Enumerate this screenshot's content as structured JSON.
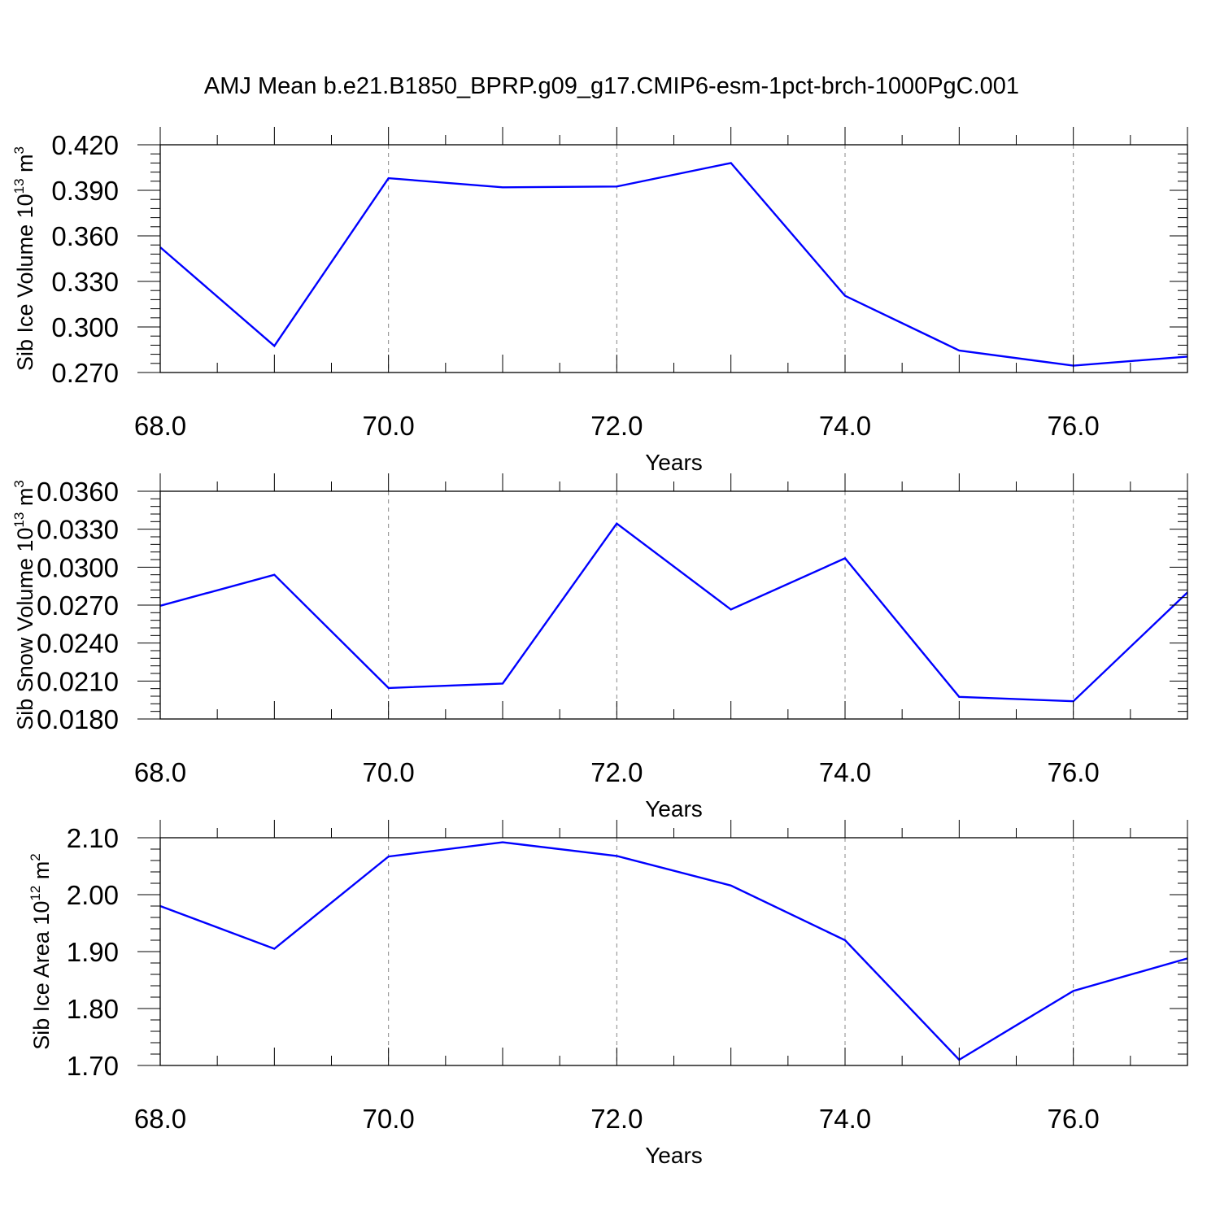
{
  "title": "AMJ Mean b.e21.B1850_BPRP.g09_g17.CMIP6-esm-1pct-brch-1000PgC.001",
  "line_color": "#0000ff",
  "chart_data": [
    {
      "type": "line",
      "xlabel": "Years",
      "ylabel": {
        "main": "Sib Ice Volume 10",
        "exp": "13",
        "unit": " m",
        "unit_exp": "3"
      },
      "xlim": [
        68,
        77
      ],
      "ylim": [
        0.27,
        0.42
      ],
      "xticks": [
        "68.0",
        "70.0",
        "72.0",
        "74.0",
        "76.0"
      ],
      "xtick_values": [
        68,
        70,
        72,
        74,
        76
      ],
      "yticks": [
        "0.420",
        "0.390",
        "0.360",
        "0.330",
        "0.300",
        "0.270"
      ],
      "ytick_values": [
        0.42,
        0.39,
        0.36,
        0.33,
        0.3,
        0.27
      ],
      "grid": "vertical dashed at major x ticks",
      "x": [
        68,
        69,
        70,
        71,
        72,
        73,
        74,
        75,
        76,
        77
      ],
      "y": [
        0.3525,
        0.2875,
        0.398,
        0.392,
        0.3925,
        0.408,
        0.3205,
        0.2845,
        0.2745,
        0.2805
      ]
    },
    {
      "type": "line",
      "xlabel": "Years",
      "ylabel": {
        "main": "Sib Snow Volume 10",
        "exp": "13",
        "unit": " m",
        "unit_exp": "3"
      },
      "xlim": [
        68,
        77
      ],
      "ylim": [
        0.018,
        0.036
      ],
      "xticks": [
        "68.0",
        "70.0",
        "72.0",
        "74.0",
        "76.0"
      ],
      "xtick_values": [
        68,
        70,
        72,
        74,
        76
      ],
      "yticks": [
        "0.0360",
        "0.0330",
        "0.0300",
        "0.0270",
        "0.0240",
        "0.0210",
        "0.0180"
      ],
      "ytick_values": [
        0.036,
        0.033,
        0.03,
        0.027,
        0.024,
        0.021,
        0.018
      ],
      "grid": "vertical dashed at major x ticks",
      "x": [
        68,
        69,
        70,
        71,
        72,
        73,
        74,
        75,
        76,
        77
      ],
      "y": [
        0.02695,
        0.0294,
        0.02045,
        0.0208,
        0.03345,
        0.02665,
        0.0307,
        0.01975,
        0.0194,
        0.028
      ]
    },
    {
      "type": "line",
      "xlabel": "Years",
      "ylabel": {
        "main": "Sib Ice Area 10",
        "exp": "12",
        "unit": " m",
        "unit_exp": "2"
      },
      "xlim": [
        68,
        77
      ],
      "ylim": [
        1.7,
        2.1
      ],
      "xticks": [
        "68.0",
        "70.0",
        "72.0",
        "74.0",
        "76.0"
      ],
      "xtick_values": [
        68,
        70,
        72,
        74,
        76
      ],
      "yticks": [
        "2.10",
        "2.00",
        "1.90",
        "1.80",
        "1.70"
      ],
      "ytick_values": [
        2.1,
        2.0,
        1.9,
        1.8,
        1.7
      ],
      "grid": "vertical dashed at major x ticks",
      "x": [
        68,
        69,
        70,
        71,
        72,
        73,
        74,
        75,
        76,
        77
      ],
      "y": [
        1.98,
        1.905,
        2.067,
        2.092,
        2.068,
        2.016,
        1.92,
        1.71,
        1.831,
        1.888
      ]
    }
  ]
}
